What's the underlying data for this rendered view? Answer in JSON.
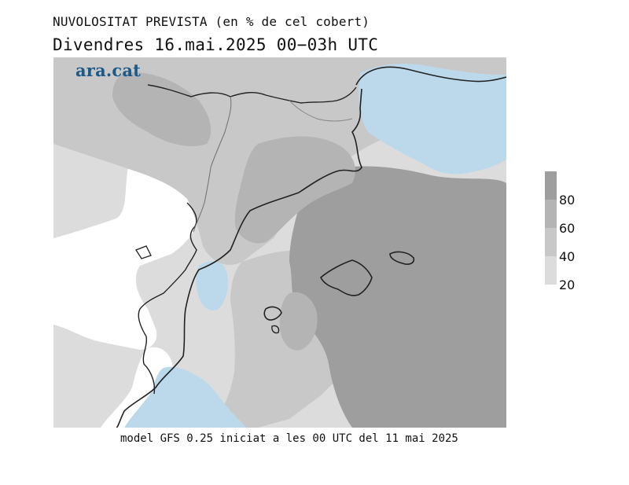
{
  "header": {
    "title": "NUVOLOSITAT PREVISTA (en % de cel cobert)",
    "subtitle": "Divendres  16.mai.2025 00−03h UTC"
  },
  "brand": {
    "logo_text": "ara.cat"
  },
  "footer": {
    "model_note": "model GFS 0.25 iniciat a les 00 UTC del 11 mai 2025"
  },
  "legend": {
    "ticks": [
      "80",
      "60",
      "40",
      "20"
    ],
    "classes": [
      {
        "range": "80-100",
        "color": "#9e9e9e"
      },
      {
        "range": "60-80",
        "color": "#b4b4b4"
      },
      {
        "range": "40-60",
        "color": "#c8c8c8"
      },
      {
        "range": "20-40",
        "color": "#dcdcdc"
      }
    ]
  },
  "map": {
    "colors": {
      "land_low_cloud": "#ffffff",
      "cloud_20_40": "#dcdcdc",
      "cloud_40_60": "#c8c8c8",
      "cloud_60_80": "#b4b4b4",
      "cloud_80_100": "#9e9e9e",
      "sea_clear": "#bcd9eb",
      "coastline": "#222222",
      "border": "#777777"
    },
    "region": "Catalonia, Valencia and Balearic Islands"
  }
}
